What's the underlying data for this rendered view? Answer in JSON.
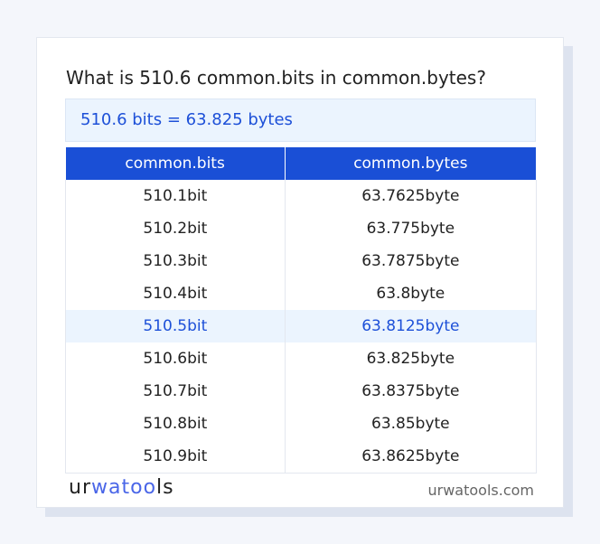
{
  "title": "What is 510.6 common.bits in common.bytes?",
  "result": "510.6 bits = 63.825 bytes",
  "table": {
    "headers": [
      "common.bits",
      "common.bytes"
    ],
    "rows": [
      [
        "510.1bit",
        "63.7625byte"
      ],
      [
        "510.2bit",
        "63.775byte"
      ],
      [
        "510.3bit",
        "63.7875byte"
      ],
      [
        "510.4bit",
        "63.8byte"
      ],
      [
        "510.5bit",
        "63.8125byte"
      ],
      [
        "510.6bit",
        "63.825byte"
      ],
      [
        "510.7bit",
        "63.8375byte"
      ],
      [
        "510.8bit",
        "63.85byte"
      ],
      [
        "510.9bit",
        "63.8625byte"
      ]
    ],
    "highlighted_row": 4
  },
  "logo": {
    "a": "ur",
    "b": "wa",
    "c": "too",
    "d": "ls"
  },
  "site": "urwatools.com",
  "colors": {
    "accent": "#1a4fd6",
    "highlight_bg": "#ebf4fe"
  }
}
